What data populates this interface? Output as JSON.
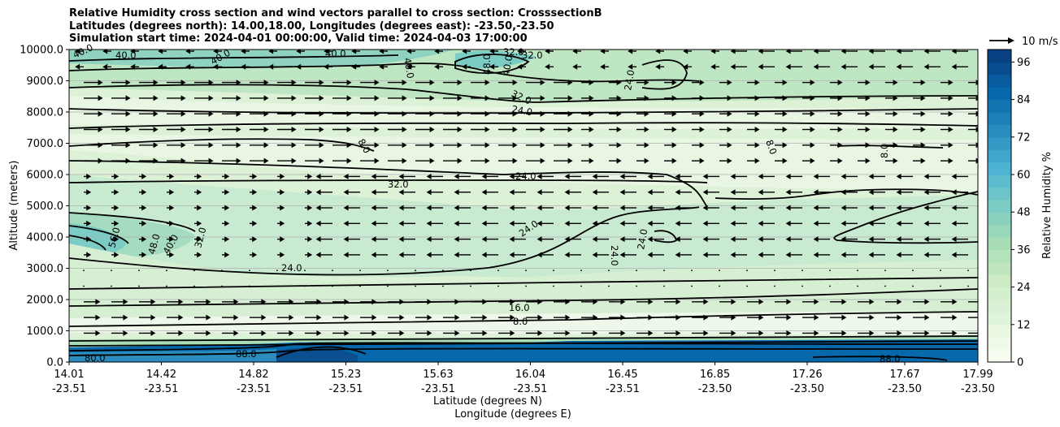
{
  "title_lines": [
    "Relative Humidity cross section and wind vectors parallel to cross section: CrosssectionB",
    "Latitudes (degrees north): 14.00,18.00, Longitudes (degrees east): -23.50,-23.50",
    "Simulation start time: 2024-04-01 00:00:00, Valid time: 2024-04-03 17:00:00"
  ],
  "chart_data": {
    "type": "contour cross-section with wind vectors",
    "ylabel": "Altitude (meters)",
    "xlabel_lines": [
      "Latitude (degrees N)",
      "Longitude (degrees E)"
    ],
    "ylim": [
      0,
      10000
    ],
    "y_ticks": [
      "0.0",
      "1000.0",
      "2000.0",
      "3000.0",
      "4000.0",
      "5000.0",
      "6000.0",
      "7000.0",
      "8000.0",
      "9000.0",
      "10000.0"
    ],
    "x_ticks": [
      {
        "lat": "14.01",
        "lon": "-23.51"
      },
      {
        "lat": "14.42",
        "lon": "-23.51"
      },
      {
        "lat": "14.82",
        "lon": "-23.51"
      },
      {
        "lat": "15.23",
        "lon": "-23.51"
      },
      {
        "lat": "15.63",
        "lon": "-23.51"
      },
      {
        "lat": "16.04",
        "lon": "-23.51"
      },
      {
        "lat": "16.45",
        "lon": "-23.51"
      },
      {
        "lat": "16.85",
        "lon": "-23.50"
      },
      {
        "lat": "17.26",
        "lon": "-23.50"
      },
      {
        "lat": "17.67",
        "lon": "-23.50"
      },
      {
        "lat": "17.99",
        "lon": "-23.50"
      }
    ],
    "grid": "horizontal",
    "colorbar": {
      "label": "Relative Humidity %",
      "ticks": [
        "0",
        "12",
        "24",
        "36",
        "48",
        "60",
        "72",
        "84",
        "96"
      ],
      "range": [
        0,
        100
      ],
      "colors": [
        "#f7fcf0",
        "#e0f3db",
        "#ccebc5",
        "#a8ddb5",
        "#7bccc4",
        "#4eb3d3",
        "#2b8cbe",
        "#0868ac",
        "#084081"
      ]
    },
    "quiver_key": "10 m/s",
    "contour_labels": [
      "80.0",
      "88.0",
      "8.0",
      "16.0",
      "24.0",
      "32.0",
      "40.0",
      "48.0",
      "56.0"
    ]
  }
}
